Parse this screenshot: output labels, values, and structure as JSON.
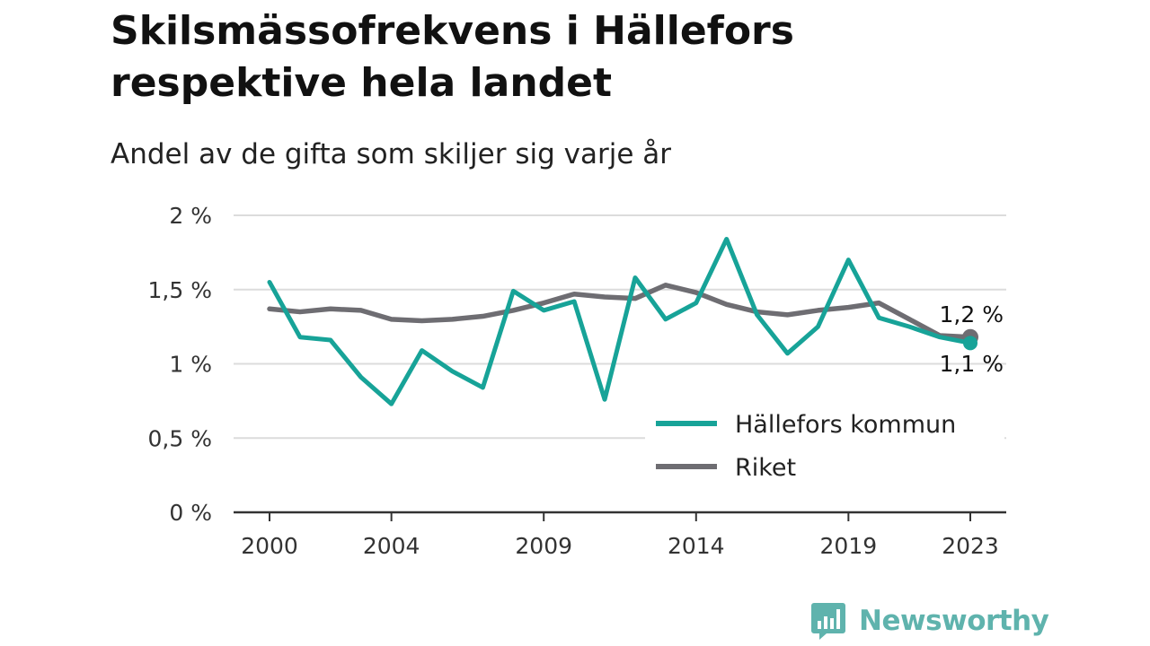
{
  "title": "Skilsmässofrekvens i Hällefors respektive hela landet",
  "subtitle": "Andel av de gifta som skiljer sig varje år",
  "brand": {
    "name": "Newsworthy",
    "icon": "bar-chart-speech-icon",
    "color": "#5fb3ad"
  },
  "chart_data": {
    "type": "line",
    "x": [
      2000,
      2001,
      2002,
      2003,
      2004,
      2005,
      2006,
      2007,
      2008,
      2009,
      2010,
      2011,
      2012,
      2013,
      2014,
      2015,
      2016,
      2017,
      2018,
      2019,
      2020,
      2021,
      2022,
      2023
    ],
    "x_ticks": [
      2000,
      2004,
      2009,
      2014,
      2019,
      2023
    ],
    "y_ticks": [
      {
        "value": 0,
        "label": "0 %"
      },
      {
        "value": 0.5,
        "label": "0,5 %"
      },
      {
        "value": 1,
        "label": "1 %"
      },
      {
        "value": 1.5,
        "label": "1,5 %"
      },
      {
        "value": 2,
        "label": "2 %"
      }
    ],
    "ylim": [
      0,
      2
    ],
    "grid": true,
    "legend_position": "bottom-right",
    "series": [
      {
        "name": "Hällefors kommun",
        "color": "#17a398",
        "values": [
          1.55,
          1.18,
          1.16,
          0.91,
          0.73,
          1.09,
          0.95,
          0.84,
          1.49,
          1.36,
          1.42,
          0.76,
          1.58,
          1.3,
          1.41,
          1.84,
          1.33,
          1.07,
          1.25,
          1.7,
          1.31,
          1.25,
          1.18,
          1.14
        ],
        "end_label": "1,1 %"
      },
      {
        "name": "Riket",
        "color": "#6e6d72",
        "values": [
          1.37,
          1.35,
          1.37,
          1.36,
          1.3,
          1.29,
          1.3,
          1.32,
          1.36,
          1.41,
          1.47,
          1.45,
          1.44,
          1.53,
          1.48,
          1.4,
          1.35,
          1.33,
          1.36,
          1.38,
          1.41,
          1.3,
          1.19,
          1.18
        ],
        "end_label": "1,2 %"
      }
    ]
  }
}
